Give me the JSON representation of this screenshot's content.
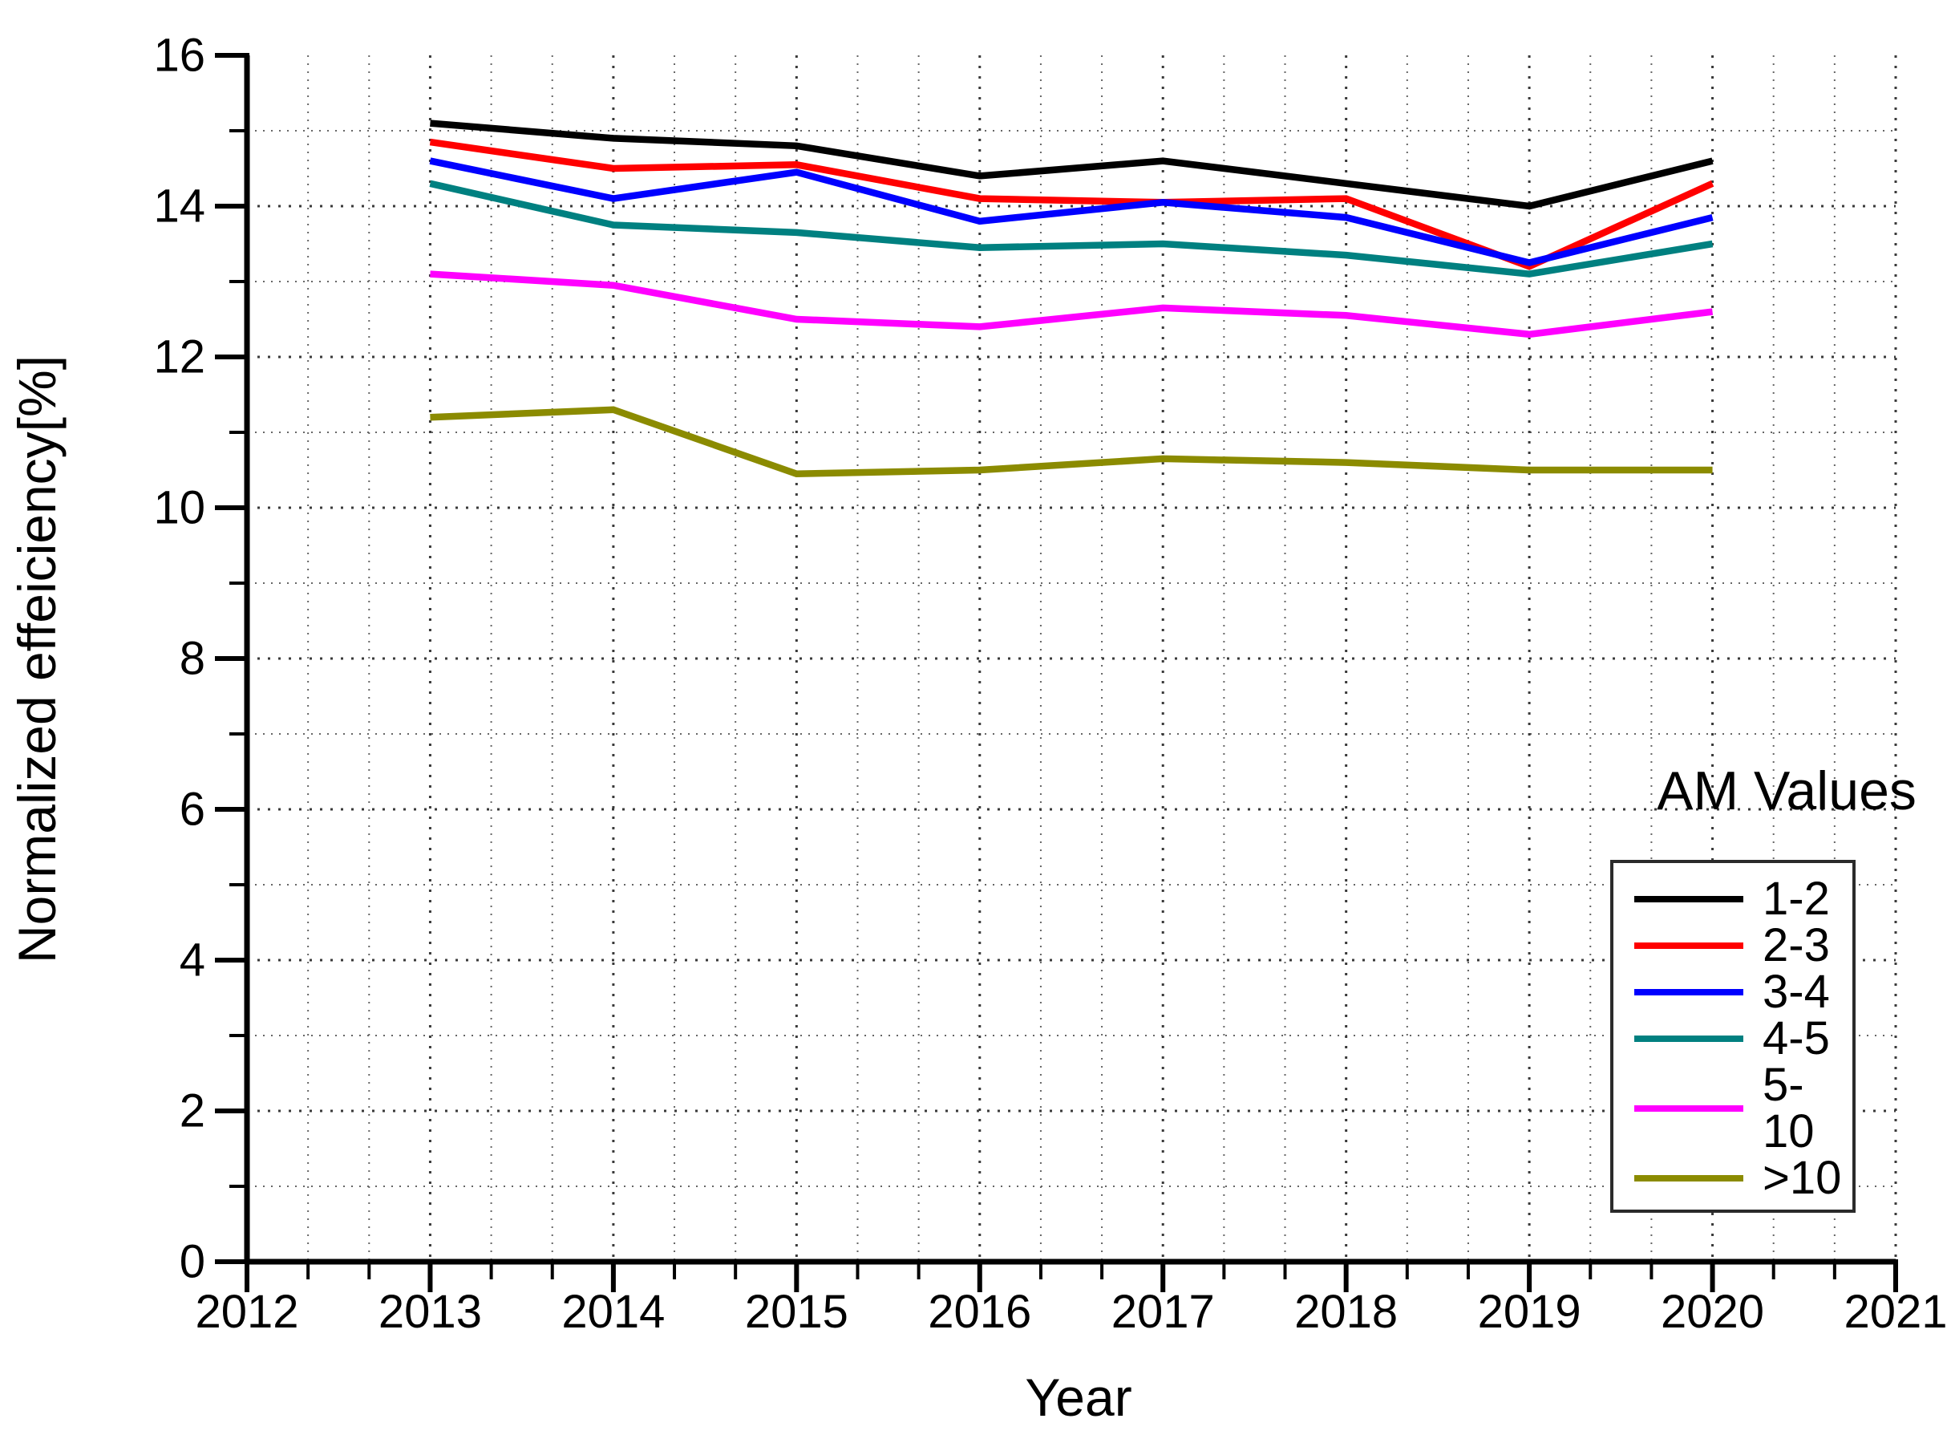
{
  "chart_data": {
    "type": "line",
    "title": "",
    "xlabel": "Year",
    "ylabel": "Normalized effeiciency[%]",
    "xlim": [
      2012,
      2021
    ],
    "ylim": [
      0,
      16
    ],
    "x_tick_labels": [
      "2012",
      "2013",
      "2014",
      "2015",
      "2016",
      "2017",
      "2018",
      "2019",
      "2020",
      "2021"
    ],
    "y_tick_labels": [
      "0",
      "2",
      "4",
      "6",
      "8",
      "10",
      "12",
      "14",
      "16"
    ],
    "grid": {
      "style": "dotted",
      "x_minor_per_year": 3,
      "y_minor_step": 1,
      "major_bold": true
    },
    "x": [
      2013,
      2014,
      2015,
      2016,
      2017,
      2018,
      2019,
      2020
    ],
    "series": [
      {
        "name": "1-2",
        "color": "#000000",
        "values": [
          15.1,
          14.9,
          14.8,
          14.4,
          14.6,
          14.3,
          14.0,
          14.6
        ]
      },
      {
        "name": "2-3",
        "color": "#ff0000",
        "values": [
          14.85,
          14.5,
          14.55,
          14.1,
          14.05,
          14.1,
          13.2,
          14.3
        ]
      },
      {
        "name": "3-4",
        "color": "#0000ff",
        "values": [
          14.6,
          14.1,
          14.45,
          13.8,
          14.05,
          13.85,
          13.25,
          13.85
        ]
      },
      {
        "name": "4-5",
        "color": "#008080",
        "values": [
          14.3,
          13.75,
          13.65,
          13.45,
          13.5,
          13.35,
          13.1,
          13.5
        ]
      },
      {
        "name": "5-10",
        "color": "#ff00ff",
        "values": [
          13.1,
          12.95,
          12.5,
          12.4,
          12.65,
          12.55,
          12.3,
          12.6
        ]
      },
      {
        "name": ">10",
        "color": "#8b8b00",
        "values": [
          11.2,
          11.3,
          10.45,
          10.5,
          10.65,
          10.6,
          10.5,
          10.5
        ]
      }
    ],
    "legend": {
      "title": "AM Values",
      "position": "inside-right",
      "entries": [
        "1-2",
        "2-3",
        "3-4",
        "4-5",
        "5-10",
        ">10"
      ]
    }
  }
}
